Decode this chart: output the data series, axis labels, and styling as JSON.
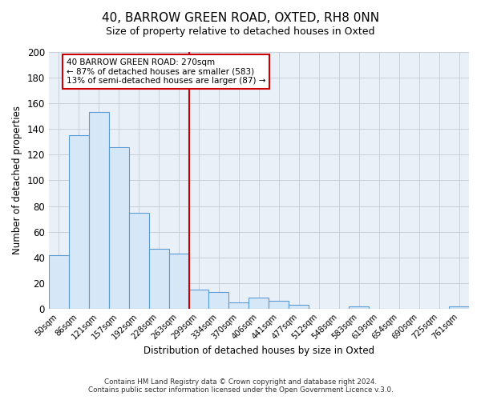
{
  "title": "40, BARROW GREEN ROAD, OXTED, RH8 0NN",
  "subtitle": "Size of property relative to detached houses in Oxted",
  "xlabel": "Distribution of detached houses by size in Oxted",
  "ylabel": "Number of detached properties",
  "bar_labels": [
    "50sqm",
    "86sqm",
    "121sqm",
    "157sqm",
    "192sqm",
    "228sqm",
    "263sqm",
    "299sqm",
    "334sqm",
    "370sqm",
    "406sqm",
    "441sqm",
    "477sqm",
    "512sqm",
    "548sqm",
    "583sqm",
    "619sqm",
    "654sqm",
    "690sqm",
    "725sqm",
    "761sqm"
  ],
  "bar_heights": [
    42,
    135,
    153,
    126,
    75,
    47,
    43,
    15,
    13,
    5,
    9,
    6,
    3,
    0,
    0,
    2,
    0,
    0,
    0,
    0,
    2
  ],
  "bar_color": "#d6e8f7",
  "bar_edge_color": "#5b9bd5",
  "vline_x": 6.5,
  "vline_color": "#cc0000",
  "annotation_title": "40 BARROW GREEN ROAD: 270sqm",
  "annotation_line1": "← 87% of detached houses are smaller (583)",
  "annotation_line2": "13% of semi-detached houses are larger (87) →",
  "annotation_box_edge": "#cc0000",
  "ylim": [
    0,
    200
  ],
  "yticks": [
    0,
    20,
    40,
    60,
    80,
    100,
    120,
    140,
    160,
    180,
    200
  ],
  "footer1": "Contains HM Land Registry data © Crown copyright and database right 2024.",
  "footer2": "Contains public sector information licensed under the Open Government Licence v.3.0.",
  "bg_color": "#ffffff",
  "plot_bg_color": "#eaf0f8",
  "grid_color": "#c8d0dc"
}
